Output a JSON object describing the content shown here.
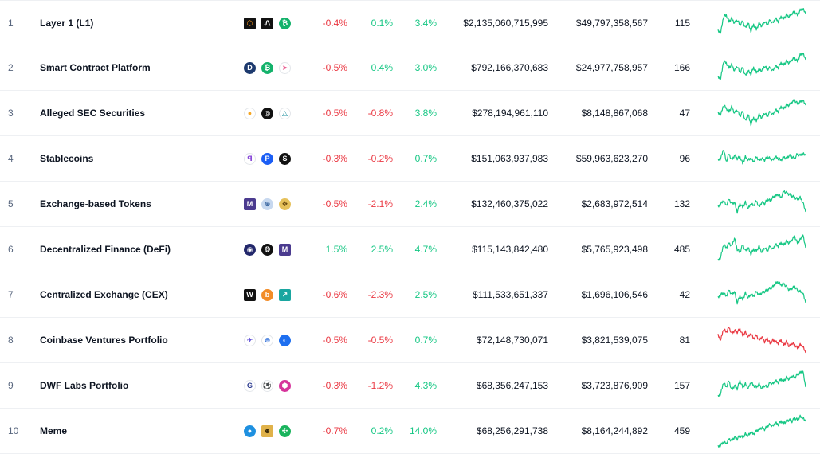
{
  "colors": {
    "positive": "#16c784",
    "negative": "#ea3943",
    "sparkline_up": "#16c784",
    "sparkline_down": "#ea3943"
  },
  "rows": [
    {
      "rank": "1",
      "name": "Layer 1 (L1)",
      "coins": [
        {
          "icon": "orange-hexagon-coin-icon",
          "bg": "#111111",
          "fg": "#f7931a",
          "glyph": "⬡",
          "shape": "sq"
        },
        {
          "icon": "black-l-coin-icon",
          "bg": "#111111",
          "fg": "#ffffff",
          "glyph": "Ꮑ",
          "shape": "sq"
        },
        {
          "icon": "green-bitcoin-coin-icon",
          "bg": "#14b26b",
          "fg": "#ffffff",
          "glyph": "₿",
          "shape": ""
        }
      ],
      "change_1h": "-0.4%",
      "change_24h": "0.1%",
      "change_7d": "3.4%",
      "market_cap": "$2,135,060,715,995",
      "volume": "$49,797,358,567",
      "num_coins": "115",
      "trend": "up",
      "spark": [
        30,
        32,
        12,
        10,
        18,
        14,
        20,
        16,
        22,
        18,
        26,
        20,
        30,
        22,
        28,
        20,
        24,
        18,
        22,
        16,
        20,
        14,
        18,
        12,
        14,
        10,
        12,
        8,
        6,
        10,
        4,
        2,
        8
      ]
    },
    {
      "rank": "2",
      "name": "Smart Contract Platform",
      "coins": [
        {
          "icon": "blue-d-coin-icon",
          "bg": "#1d3a6e",
          "fg": "#ffffff",
          "glyph": "D",
          "shape": ""
        },
        {
          "icon": "green-bitcoin-coin-icon",
          "bg": "#14b26b",
          "fg": "#ffffff",
          "glyph": "₿",
          "shape": ""
        },
        {
          "icon": "pink-arrow-coin-icon",
          "bg": "#ffffff",
          "fg": "#e85a8f",
          "glyph": "➤",
          "shape": ""
        }
      ],
      "change_1h": "-0.5%",
      "change_24h": "0.4%",
      "change_7d": "3.0%",
      "market_cap": "$792,166,370,683",
      "volume": "$24,977,758,957",
      "num_coins": "166",
      "trend": "up",
      "spark": [
        32,
        34,
        12,
        14,
        20,
        16,
        24,
        18,
        26,
        20,
        30,
        24,
        28,
        20,
        26,
        22,
        24,
        18,
        22,
        20,
        24,
        18,
        20,
        14,
        16,
        12,
        14,
        10,
        8,
        12,
        4,
        2,
        10
      ]
    },
    {
      "rank": "3",
      "name": "Alleged SEC Securities",
      "coins": [
        {
          "icon": "orange-flame-coin-icon",
          "bg": "#ffffff",
          "fg": "#f5a623",
          "glyph": "●",
          "shape": ""
        },
        {
          "icon": "black-ring-coin-icon",
          "bg": "#111111",
          "fg": "#ffffff",
          "glyph": "◎",
          "shape": ""
        },
        {
          "icon": "teal-triangle-coin-icon",
          "bg": "#ffffff",
          "fg": "#1c8e9e",
          "glyph": "△",
          "shape": ""
        }
      ],
      "change_1h": "-0.5%",
      "change_24h": "-0.8%",
      "change_7d": "3.8%",
      "market_cap": "$278,194,961,110",
      "volume": "$8,148,867,068",
      "num_coins": "47",
      "trend": "up",
      "spark": [
        20,
        22,
        10,
        14,
        18,
        12,
        20,
        16,
        24,
        18,
        30,
        22,
        34,
        26,
        30,
        22,
        26,
        20,
        24,
        18,
        22,
        16,
        18,
        12,
        14,
        10,
        10,
        6,
        4,
        8,
        6,
        4,
        10
      ]
    },
    {
      "rank": "4",
      "name": "Stablecoins",
      "coins": [
        {
          "icon": "purple-s-coin-icon",
          "bg": "#ffffff",
          "fg": "#8a4bd8",
          "glyph": "ꟼ",
          "shape": ""
        },
        {
          "icon": "blue-p-coin-icon",
          "bg": "#1b5ef5",
          "fg": "#ffffff",
          "glyph": "P",
          "shape": ""
        },
        {
          "icon": "black-s-coin-icon",
          "bg": "#111111",
          "fg": "#ffffff",
          "glyph": "S",
          "shape": ""
        }
      ],
      "change_1h": "-0.3%",
      "change_24h": "-0.2%",
      "change_7d": "0.7%",
      "market_cap": "$151,063,937,983",
      "volume": "$59,963,623,270",
      "num_coins": "96",
      "trend": "up",
      "spark": [
        22,
        20,
        8,
        24,
        14,
        22,
        16,
        20,
        18,
        26,
        18,
        22,
        20,
        24,
        18,
        22,
        20,
        22,
        18,
        20,
        22,
        18,
        20,
        22,
        18,
        20,
        16,
        18,
        20,
        14,
        16,
        14,
        16
      ]
    },
    {
      "rank": "5",
      "name": "Exchange-based Tokens",
      "coins": [
        {
          "icon": "purple-m-coin-icon",
          "bg": "#4b3b8f",
          "fg": "#ffffff",
          "glyph": "M",
          "shape": "sq"
        },
        {
          "icon": "blue-globe-coin-icon",
          "bg": "#c7d8ef",
          "fg": "#34619c",
          "glyph": "⊛",
          "shape": ""
        },
        {
          "icon": "gold-pattern-coin-icon",
          "bg": "#e6c15a",
          "fg": "#6a4a10",
          "glyph": "❖",
          "shape": ""
        }
      ],
      "change_1h": "-0.5%",
      "change_24h": "-2.1%",
      "change_7d": "2.4%",
      "market_cap": "$132,460,375,022",
      "volume": "$2,683,972,514",
      "num_coins": "132",
      "trend": "up",
      "spark": [
        24,
        20,
        16,
        22,
        14,
        20,
        18,
        30,
        20,
        24,
        18,
        26,
        20,
        22,
        16,
        24,
        18,
        20,
        14,
        16,
        12,
        10,
        8,
        12,
        4,
        6,
        8,
        10,
        12,
        14,
        12,
        18,
        30
      ]
    },
    {
      "rank": "6",
      "name": "Decentralized Finance (DeFi)",
      "coins": [
        {
          "icon": "navy-swirl-coin-icon",
          "bg": "#23286b",
          "fg": "#ffffff",
          "glyph": "◉",
          "shape": ""
        },
        {
          "icon": "black-ring-coin-icon",
          "bg": "#111111",
          "fg": "#ffffff",
          "glyph": "❂",
          "shape": ""
        },
        {
          "icon": "purple-m-coin-icon",
          "bg": "#4b3b8f",
          "fg": "#ffffff",
          "glyph": "M",
          "shape": "sq"
        }
      ],
      "change_1h": "1.5%",
      "change_24h": "2.5%",
      "change_7d": "4.7%",
      "market_cap": "$115,143,842,480",
      "volume": "$5,765,923,498",
      "num_coins": "485",
      "trend": "up",
      "spark": [
        34,
        30,
        14,
        18,
        12,
        16,
        6,
        20,
        24,
        14,
        22,
        18,
        26,
        20,
        22,
        16,
        24,
        18,
        22,
        16,
        20,
        14,
        16,
        12,
        14,
        10,
        12,
        8,
        4,
        12,
        8,
        2,
        18
      ]
    },
    {
      "rank": "7",
      "name": "Centralized Exchange (CEX)",
      "coins": [
        {
          "icon": "black-w-coin-icon",
          "bg": "#111111",
          "fg": "#ffffff",
          "glyph": "W",
          "shape": "sq"
        },
        {
          "icon": "orange-b-coin-icon",
          "bg": "#f28c28",
          "fg": "#ffffff",
          "glyph": "b",
          "shape": ""
        },
        {
          "icon": "teal-chart-coin-icon",
          "bg": "#1aa6a0",
          "fg": "#ffffff",
          "glyph": "↗",
          "shape": "sq"
        }
      ],
      "change_1h": "-0.6%",
      "change_24h": "-2.3%",
      "change_7d": "2.5%",
      "market_cap": "$111,533,651,337",
      "volume": "$1,696,106,546",
      "num_coins": "42",
      "trend": "up",
      "spark": [
        24,
        20,
        18,
        22,
        14,
        20,
        16,
        30,
        22,
        26,
        18,
        24,
        20,
        22,
        16,
        20,
        18,
        16,
        14,
        12,
        10,
        6,
        4,
        8,
        6,
        10,
        14,
        12,
        10,
        14,
        16,
        18,
        30
      ]
    },
    {
      "rank": "8",
      "name": "Coinbase Ventures Portfolio",
      "coins": [
        {
          "icon": "rocket-coin-icon",
          "bg": "#ffffff",
          "fg": "#5b4bd6",
          "glyph": "✈",
          "shape": ""
        },
        {
          "icon": "blue-lines-coin-icon",
          "bg": "#ffffff",
          "fg": "#2b6cd8",
          "glyph": "⊜",
          "shape": ""
        },
        {
          "icon": "blue-ring-coin-icon",
          "bg": "#1e6ff0",
          "fg": "#ffffff",
          "glyph": "◐",
          "shape": ""
        }
      ],
      "change_1h": "-0.5%",
      "change_24h": "-0.5%",
      "change_7d": "0.7%",
      "market_cap": "$72,148,730,071",
      "volume": "$3,821,539,075",
      "num_coins": "81",
      "trend": "down",
      "spark": [
        14,
        20,
        6,
        10,
        4,
        12,
        8,
        10,
        6,
        14,
        10,
        16,
        12,
        18,
        14,
        20,
        16,
        22,
        18,
        24,
        20,
        22,
        24,
        20,
        26,
        22,
        28,
        24,
        26,
        30,
        26,
        28,
        36
      ]
    },
    {
      "rank": "9",
      "name": "DWF Labs Portfolio",
      "coins": [
        {
          "icon": "blue-g-coin-icon",
          "bg": "#ffffff",
          "fg": "#2b3a8f",
          "glyph": "G",
          "shape": ""
        },
        {
          "icon": "soccer-ball-coin-icon",
          "bg": "#ffffff",
          "fg": "#111111",
          "glyph": "⚽",
          "shape": ""
        },
        {
          "icon": "pink-hexagon-coin-icon",
          "bg": "#d6339b",
          "fg": "#ffffff",
          "glyph": "⬢",
          "shape": ""
        }
      ],
      "change_1h": "-0.3%",
      "change_24h": "-1.2%",
      "change_7d": "4.3%",
      "market_cap": "$68,356,247,153",
      "volume": "$3,723,876,909",
      "num_coins": "157",
      "trend": "up",
      "spark": [
        34,
        30,
        16,
        22,
        14,
        26,
        20,
        24,
        14,
        22,
        18,
        24,
        16,
        20,
        22,
        18,
        24,
        20,
        22,
        16,
        18,
        14,
        16,
        12,
        14,
        10,
        12,
        8,
        10,
        6,
        4,
        2,
        22
      ]
    },
    {
      "rank": "10",
      "name": "Meme",
      "coins": [
        {
          "icon": "blue-globe-coin-icon",
          "bg": "#1e90e0",
          "fg": "#ffffff",
          "glyph": "●",
          "shape": ""
        },
        {
          "icon": "gold-character-coin-icon",
          "bg": "#e0b24a",
          "fg": "#3a2a08",
          "glyph": "☻",
          "shape": "sq"
        },
        {
          "icon": "green-pattern-coin-icon",
          "bg": "#19b35c",
          "fg": "#ffffff",
          "glyph": "✣",
          "shape": ""
        }
      ],
      "change_1h": "-0.7%",
      "change_24h": "0.2%",
      "change_7d": "14.0%",
      "market_cap": "$68,256,291,738",
      "volume": "$8,164,244,892",
      "num_coins": "459",
      "trend": "up",
      "spark": [
        40,
        38,
        34,
        36,
        30,
        32,
        28,
        30,
        26,
        28,
        24,
        26,
        22,
        24,
        20,
        18,
        16,
        18,
        14,
        12,
        14,
        10,
        12,
        8,
        10,
        8,
        6,
        8,
        4,
        6,
        2,
        4,
        8
      ]
    }
  ]
}
